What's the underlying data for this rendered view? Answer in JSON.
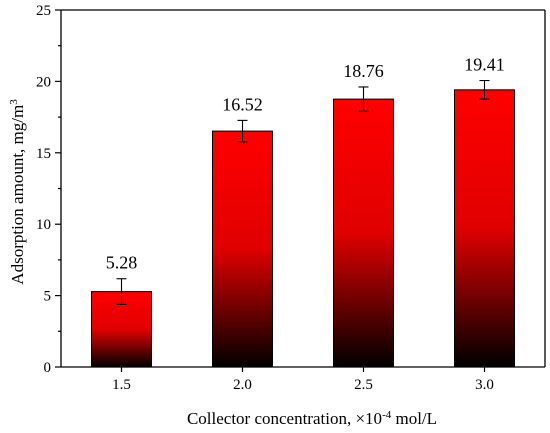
{
  "chart_data": {
    "type": "bar",
    "title": "",
    "xlabel": "Collector concentration, ×10",
    "xlabel_sup": "-4",
    "xlabel_suffix": " mol/L",
    "ylabel": "Adsorption amount, mg/m",
    "ylabel_sup": "3",
    "ylim": [
      0,
      25
    ],
    "yticks": [
      0,
      5,
      10,
      15,
      20,
      25
    ],
    "categories": [
      "1.5",
      "2.0",
      "2.5",
      "3.0"
    ],
    "values": [
      5.28,
      16.52,
      18.76,
      19.41
    ],
    "data_labels": [
      "5.28",
      "16.52",
      "18.76",
      "19.41"
    ],
    "errors": [
      0.9,
      0.75,
      0.85,
      0.65
    ],
    "grid": false,
    "legend": "none",
    "colors": {
      "bar_top": "#ff0000",
      "bar_bottom": "#000000",
      "axis": "#000000"
    }
  }
}
